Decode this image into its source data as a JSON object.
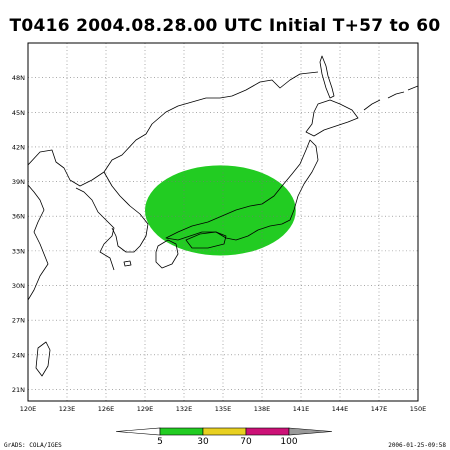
{
  "title": "T0416  2004.08.28.00  UTC  Initial  T+57  to  60",
  "map": {
    "lon_range": [
      120,
      150
    ],
    "lat_range": [
      20,
      51
    ],
    "lon_ticks": [
      "120E",
      "123E",
      "126E",
      "129E",
      "132E",
      "135E",
      "138E",
      "141E",
      "144E",
      "147E",
      "150E"
    ],
    "lat_ticks": [
      "21N",
      "24N",
      "27N",
      "30N",
      "33N",
      "36N",
      "39N",
      "42N",
      "45N",
      "48N"
    ],
    "grid": "dotted",
    "probability_area": {
      "center_lon": 134.8,
      "center_lat": 36.5,
      "radius_lon": 5.8,
      "radius_lat": 3.9,
      "color": "#22cc22",
      "band": "5-30"
    }
  },
  "colorbar": {
    "colors": [
      "#22cc22",
      "#e8d020",
      "#cc1177",
      "#999999"
    ],
    "labels": [
      "5",
      "30",
      "70",
      "100"
    ]
  },
  "footer": {
    "left": "GrADS: COLA/IGES",
    "right": "2006-01-25-09:58"
  }
}
